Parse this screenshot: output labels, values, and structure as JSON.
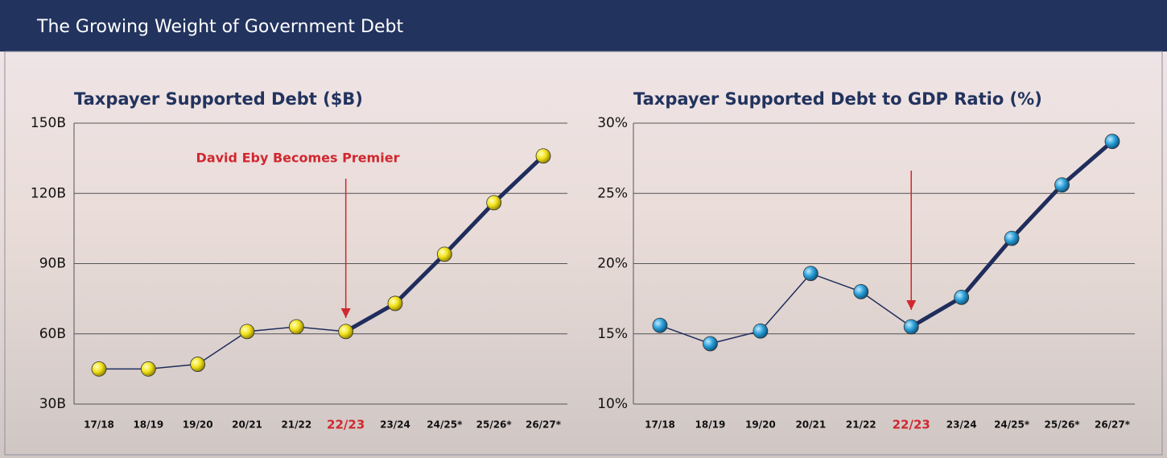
{
  "header": {
    "title": "The Growing Weight of Government Debt"
  },
  "chart_data": [
    {
      "type": "line",
      "title": "Taxpayer Supported Debt ($B)",
      "categories": [
        "17/18",
        "18/19",
        "19/20",
        "20/21",
        "21/22",
        "22/23",
        "23/24",
        "24/25*",
        "25/26*",
        "26/27*"
      ],
      "series": [
        {
          "color": "#f2e21b",
          "values": [
            45,
            45,
            47,
            61,
            63,
            61,
            73,
            94,
            116,
            136
          ]
        }
      ],
      "line_color": "#1f2d5c",
      "highlight": 5,
      "highlight_color": "#d0282e",
      "annotation": "David Eby Becomes Premier",
      "ylim": [
        30,
        150
      ],
      "yticks": [
        {
          "value": 30,
          "label": "30B"
        },
        {
          "value": 60,
          "label": "60B"
        },
        {
          "value": 90,
          "label": "90B"
        },
        {
          "value": 120,
          "label": "120B"
        },
        {
          "value": 150,
          "label": "150B"
        }
      ],
      "grid": true
    },
    {
      "type": "line",
      "title": "Taxpayer Supported Debt to GDP Ratio (%)",
      "categories": [
        "17/18",
        "18/19",
        "19/20",
        "20/21",
        "21/22",
        "22/23",
        "23/24",
        "24/25*",
        "25/26*",
        "26/27*"
      ],
      "series": [
        {
          "color": "#2a9fd8",
          "values": [
            15.6,
            14.3,
            15.2,
            19.3,
            18.0,
            15.5,
            17.6,
            21.8,
            25.6,
            28.7
          ]
        }
      ],
      "line_color": "#1f2d5c",
      "highlight": 5,
      "highlight_color": "#d0282e",
      "ylim": [
        10,
        30
      ],
      "yticks": [
        {
          "value": 10,
          "label": "10%"
        },
        {
          "value": 15,
          "label": "15%"
        },
        {
          "value": 20,
          "label": "20%"
        },
        {
          "value": 25,
          "label": "25%"
        },
        {
          "value": 30,
          "label": "30%"
        }
      ],
      "grid": true
    }
  ]
}
